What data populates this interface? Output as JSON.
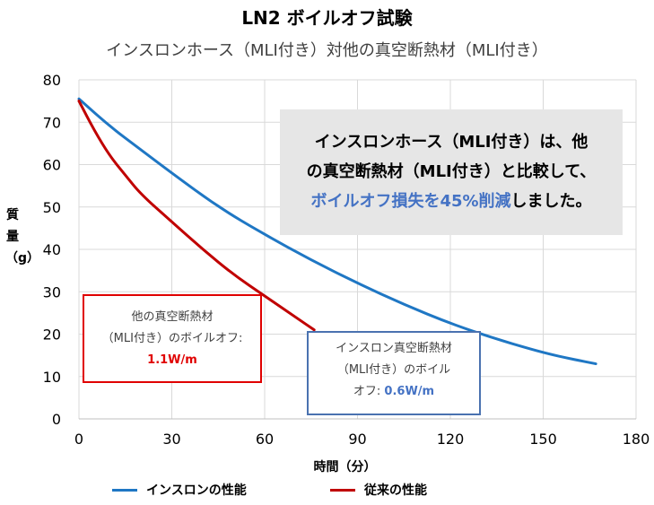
{
  "chart_data": {
    "type": "line",
    "title": "LN2 ボイルオフ試験",
    "subtitle": "インスロンホース（MLI付き）対他の真空断熱材（MLI付き）",
    "xlabel": "時間（分）",
    "ylabel": "質量（g）",
    "xlim": [
      0,
      180
    ],
    "ylim": [
      0,
      80
    ],
    "xticks": [
      "0",
      "30",
      "60",
      "90",
      "120",
      "150",
      "180"
    ],
    "yticks": [
      "0",
      "10",
      "20",
      "30",
      "40",
      "50",
      "60",
      "70",
      "80"
    ],
    "grid": true,
    "legend_position": "bottom",
    "series": [
      {
        "name": "インスロンの性能",
        "color": "#1f77c4",
        "x": [
          0,
          10,
          20,
          30,
          45,
          60,
          75,
          90,
          105,
          120,
          135,
          150,
          160,
          167
        ],
        "y": [
          75.5,
          69,
          63.5,
          58,
          50,
          43.5,
          37.5,
          32,
          27,
          22.5,
          18.8,
          15.6,
          14,
          13
        ]
      },
      {
        "name": "従来の性能",
        "color": "#c00000",
        "x": [
          0,
          5,
          10,
          15,
          20,
          30,
          40,
          50,
          60,
          70,
          76
        ],
        "y": [
          75,
          68,
          62,
          57.5,
          53,
          46.5,
          40,
          34,
          29,
          24,
          21
        ]
      }
    ],
    "annotations": {
      "callout_line1": "インスロンホース（MLI付き）は、他",
      "callout_line2": "の真空断熱材（MLI付き）と比較して、",
      "callout_highlight": "ボイルオフ損失を45%削減",
      "callout_tail": "しました。",
      "box1_line1": "他の真空断熱材",
      "box1_line2": "（MLI付き）のボイルオフ:",
      "box1_value": "1.1W/m",
      "box2_line1": "インスロン真空断熱材",
      "box2_line2": "（MLI付き）のボイル",
      "box2_line3": "オフ: ",
      "box2_value": "0.6W/m"
    }
  }
}
